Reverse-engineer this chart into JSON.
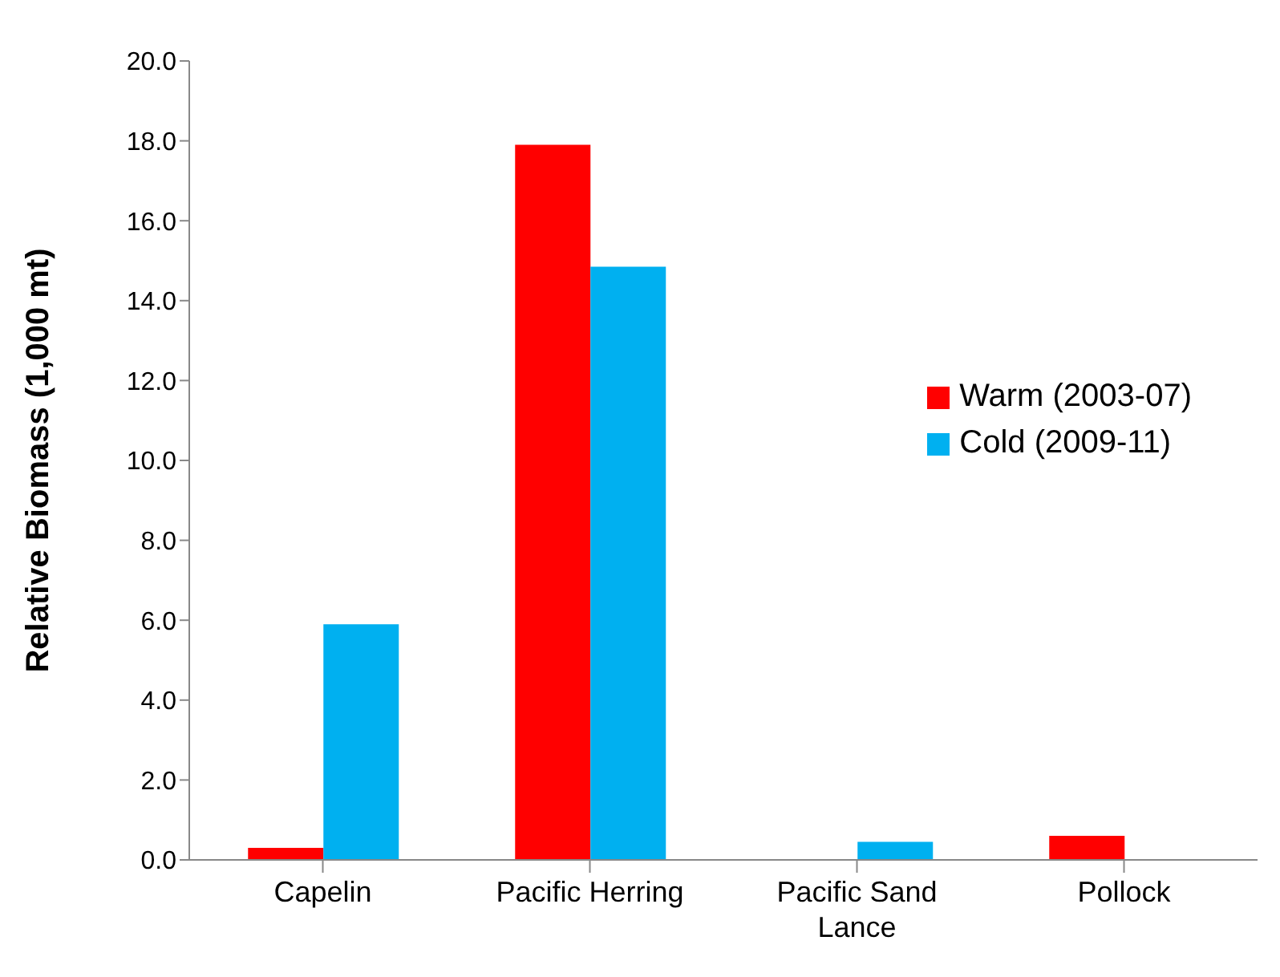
{
  "chart_data": {
    "type": "bar",
    "ylabel": "Relative Biomass (1,000 mt)",
    "categories": [
      "Capelin",
      "Pacific Herring",
      "Pacific Sand Lance",
      "Pollock"
    ],
    "series": [
      {
        "name": "Warm (2003-07)",
        "color": "#ff0000",
        "values": [
          0.3,
          17.9,
          0,
          0.6
        ]
      },
      {
        "name": "Cold (2009-11)",
        "color": "#00b0f0",
        "values": [
          5.9,
          14.85,
          0.45,
          0
        ]
      }
    ],
    "ylim": [
      0,
      20
    ],
    "yticks": [
      {
        "value": 0,
        "label": "0.0"
      },
      {
        "value": 2,
        "label": "2.0"
      },
      {
        "value": 4,
        "label": "4.0"
      },
      {
        "value": 6,
        "label": "6.0"
      },
      {
        "value": 8,
        "label": "8.0"
      },
      {
        "value": 10,
        "label": "10.0"
      },
      {
        "value": 12,
        "label": "12.0"
      },
      {
        "value": 14,
        "label": "14.0"
      },
      {
        "value": 16,
        "label": "16.0"
      },
      {
        "value": 18,
        "label": "18.0"
      },
      {
        "value": 20,
        "label": "20.0"
      }
    ],
    "grid": false,
    "legend": "right"
  }
}
